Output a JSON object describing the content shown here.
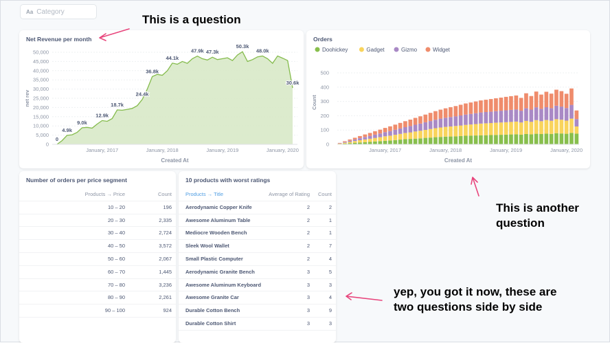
{
  "filter": {
    "label": "Category",
    "icon": "text-icon"
  },
  "annotations": {
    "question": "This is a question",
    "another1": "This is another",
    "another2": "question",
    "side1": "yep, you got it now, these are",
    "side2": "two questions side by side"
  },
  "colors": {
    "arrow": "#e8457c",
    "line": "#84bb4c",
    "doohickey": "#88bf4d",
    "gadget": "#f9d45c",
    "gizmo": "#a989c5",
    "widget": "#ef8c6c"
  },
  "net_revenue": {
    "title": "Net Revenue per month",
    "ylabel": "net rev",
    "xlabel": "Created At",
    "yticks": [
      "50,000",
      "45,000",
      "40,000",
      "35,000",
      "30,000",
      "25,000",
      "20,000",
      "15,000",
      "10,000",
      "5,000",
      "0"
    ],
    "xticks": [
      "January, 2017",
      "January, 2018",
      "January, 2019",
      "January, 2020"
    ],
    "labels": [
      "0",
      "4.9k",
      "9.0k",
      "12.9k",
      "18.7k",
      "24.4k",
      "36.8k",
      "44.1k",
      "47.9k",
      "47.3k",
      "50.3k",
      "48.0k",
      "30.6k"
    ]
  },
  "orders_chart": {
    "title": "Orders",
    "ylabel": "Count",
    "xlabel": "Created At",
    "yticks": [
      "500",
      "400",
      "300",
      "200",
      "100",
      "0"
    ],
    "xticks": [
      "January, 2017",
      "January, 2018",
      "January, 2019",
      "January, 2020"
    ],
    "legend": [
      "Doohickey",
      "Gadget",
      "Gizmo",
      "Widget"
    ]
  },
  "price_table": {
    "title": "Number of orders per price segment",
    "col_price": "Products → Price",
    "col_count": "Count",
    "rows": [
      {
        "price": "10 – 20",
        "count": "196"
      },
      {
        "price": "20 – 30",
        "count": "2,335"
      },
      {
        "price": "30 – 40",
        "count": "2,724"
      },
      {
        "price": "40 – 50",
        "count": "3,572"
      },
      {
        "price": "50 – 60",
        "count": "2,067"
      },
      {
        "price": "60 – 70",
        "count": "1,445"
      },
      {
        "price": "70 – 80",
        "count": "3,236"
      },
      {
        "price": "80 – 90",
        "count": "2,261"
      },
      {
        "price": "90 – 100",
        "count": "924"
      }
    ]
  },
  "ratings_table": {
    "title": "10 products with worst ratings",
    "col_title": "Products → Title",
    "col_rating": "Average of Rating",
    "col_count": "Count",
    "rows": [
      {
        "title": "Aerodynamic Copper Knife",
        "rating": "2",
        "count": "2"
      },
      {
        "title": "Awesome Aluminum Table",
        "rating": "2",
        "count": "1"
      },
      {
        "title": "Mediocre Wooden Bench",
        "rating": "2",
        "count": "1"
      },
      {
        "title": "Sleek Wool Wallet",
        "rating": "2",
        "count": "7"
      },
      {
        "title": "Small Plastic Computer",
        "rating": "2",
        "count": "4"
      },
      {
        "title": "Aerodynamic Granite Bench",
        "rating": "3",
        "count": "5"
      },
      {
        "title": "Awesome Aluminum Keyboard",
        "rating": "3",
        "count": "3"
      },
      {
        "title": "Awesome Granite Car",
        "rating": "3",
        "count": "4"
      },
      {
        "title": "Durable Cotton Bench",
        "rating": "3",
        "count": "9"
      },
      {
        "title": "Durable Cotton Shirt",
        "rating": "3",
        "count": "3"
      }
    ]
  },
  "chart_data": [
    {
      "type": "area",
      "title": "Net Revenue per month",
      "xlabel": "Created At",
      "ylabel": "net rev",
      "ylim": [
        0,
        50000
      ],
      "x_start": "2016-04",
      "x_step": "month",
      "values": [
        0,
        2000,
        4900,
        5200,
        6500,
        9000,
        9200,
        8800,
        11000,
        12900,
        12500,
        14000,
        18700,
        18500,
        19000,
        19500,
        21000,
        24400,
        30000,
        36800,
        38000,
        37500,
        40000,
        44100,
        43500,
        45000,
        44000,
        46500,
        47900,
        46500,
        45800,
        47300,
        46000,
        46500,
        47000,
        45500,
        48500,
        50300,
        45000,
        46000,
        47500,
        48000,
        46500,
        44000,
        48000,
        46800,
        45500,
        30600
      ],
      "labeled_points": [
        "0",
        "4.9k",
        "9.0k",
        "12.9k",
        "18.7k",
        "24.4k",
        "36.8k",
        "44.1k",
        "47.9k",
        "47.3k",
        "50.3k",
        "48.0k",
        "30.6k"
      ],
      "grid": true
    },
    {
      "type": "bar",
      "stacked": true,
      "title": "Orders",
      "xlabel": "Created At",
      "ylabel": "Count",
      "ylim": [
        0,
        550
      ],
      "x_start": "2016-04",
      "x_step": "month",
      "legend": "top-left",
      "series": [
        {
          "name": "Doohickey",
          "values": [
            2,
            5,
            8,
            11,
            13,
            15,
            17,
            20,
            22,
            25,
            27,
            30,
            33,
            36,
            38,
            40,
            42,
            45,
            47,
            50,
            52,
            54,
            55,
            56,
            58,
            60,
            61,
            62,
            63,
            64,
            65,
            66,
            67,
            68,
            69,
            70,
            68,
            72,
            70,
            74,
            72,
            75,
            73,
            78,
            76,
            74,
            80,
            75
          ]
        },
        {
          "name": "Gadget",
          "values": [
            3,
            6,
            9,
            12,
            16,
            19,
            22,
            25,
            28,
            31,
            34,
            37,
            40,
            43,
            46,
            50,
            53,
            56,
            60,
            63,
            66,
            68,
            70,
            72,
            74,
            76,
            78,
            80,
            82,
            83,
            84,
            85,
            86,
            87,
            88,
            89,
            85,
            92,
            88,
            95,
            90,
            95,
            92,
            98,
            96,
            92,
            100,
            50
          ]
        },
        {
          "name": "Gizmo",
          "values": [
            2,
            5,
            8,
            11,
            14,
            17,
            20,
            23,
            26,
            29,
            32,
            35,
            38,
            41,
            44,
            47,
            50,
            53,
            56,
            59,
            62,
            64,
            66,
            68,
            70,
            72,
            74,
            76,
            78,
            79,
            80,
            81,
            82,
            83,
            84,
            85,
            82,
            88,
            85,
            90,
            86,
            90,
            88,
            94,
            92,
            88,
            96,
            52
          ]
        },
        {
          "name": "Widget",
          "values": [
            3,
            6,
            9,
            12,
            15,
            18,
            21,
            24,
            27,
            30,
            33,
            36,
            39,
            42,
            45,
            48,
            51,
            54,
            57,
            60,
            63,
            66,
            69,
            72,
            75,
            78,
            80,
            82,
            84,
            86,
            88,
            90,
            92,
            94,
            96,
            98,
            90,
            105,
            95,
            110,
            100,
            108,
            102,
            112,
            108,
            100,
            115,
            60
          ]
        }
      ],
      "grid": true
    }
  ]
}
